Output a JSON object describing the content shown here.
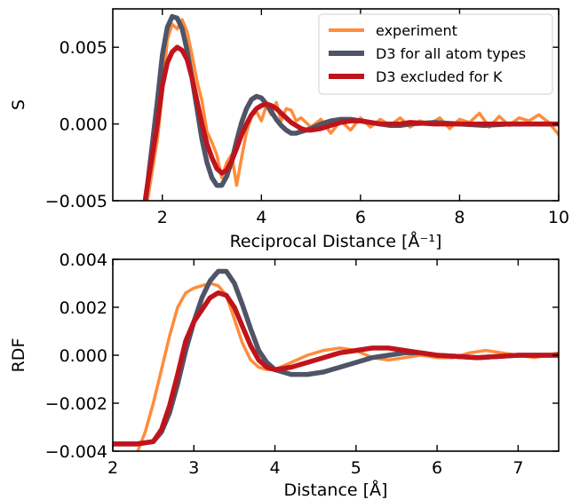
{
  "colors": {
    "experiment": "#ff8c3a",
    "d3_all": "#4f5467",
    "d3_excl": "#c0141c"
  },
  "chart_data": [
    {
      "type": "line",
      "ylabel": "S",
      "xlabel": "Reciprocal Distance [Å⁻¹]",
      "xlim": [
        1,
        10
      ],
      "ylim": [
        -0.005,
        0.0075
      ],
      "xticks": [
        2,
        4,
        6,
        8,
        10
      ],
      "xtick_labels": [
        "2",
        "4",
        "6",
        "8",
        "10"
      ],
      "yticks": [
        -0.005,
        0.0,
        0.005
      ],
      "ytick_labels": [
        "−0.005",
        "0.000",
        "0.005"
      ],
      "grid": false,
      "legend_position": "top-right",
      "series": [
        {
          "name": "experiment",
          "color_key": "experiment",
          "x": [
            1.5,
            1.7,
            1.9,
            2.0,
            2.1,
            2.2,
            2.3,
            2.4,
            2.5,
            2.6,
            2.7,
            2.8,
            2.9,
            3.0,
            3.1,
            3.2,
            3.3,
            3.4,
            3.5,
            3.6,
            3.7,
            3.8,
            3.9,
            4.0,
            4.1,
            4.2,
            4.3,
            4.4,
            4.5,
            4.6,
            4.7,
            4.8,
            4.9,
            5.0,
            5.2,
            5.4,
            5.6,
            5.8,
            6.0,
            6.2,
            6.4,
            6.6,
            6.8,
            7.0,
            7.2,
            7.4,
            7.6,
            7.8,
            8.0,
            8.2,
            8.4,
            8.6,
            8.8,
            9.0,
            9.2,
            9.4,
            9.6,
            9.8,
            10.0
          ],
          "y": [
            -0.007,
            -0.005,
            -0.001,
            0.002,
            0.0055,
            0.0065,
            0.0062,
            0.0068,
            0.006,
            0.0045,
            0.0028,
            0.0015,
            -0.0005,
            -0.0012,
            -0.002,
            -0.0035,
            -0.0025,
            -0.002,
            -0.004,
            -0.0022,
            -0.0005,
            0.0005,
            0.0008,
            0.0002,
            0.0012,
            0.0006,
            0.0014,
            0.0002,
            0.001,
            0.0009,
            0.0002,
            0.0004,
            0.0001,
            -0.0002,
            0.0003,
            -0.0006,
            0.0002,
            -0.0004,
            0.0004,
            -0.0002,
            0.0003,
            -0.0001,
            0.0004,
            -0.0002,
            0.0002,
            0.0,
            0.0004,
            -0.0003,
            0.0003,
            0.0001,
            0.0007,
            -0.0002,
            0.0005,
            -0.0001,
            0.0004,
            0.0002,
            0.0006,
            0.0001,
            -0.0007
          ]
        },
        {
          "name": "D3 for all atom types",
          "color_key": "d3_all",
          "x": [
            1.5,
            1.7,
            1.9,
            2.0,
            2.1,
            2.2,
            2.3,
            2.4,
            2.5,
            2.6,
            2.7,
            2.8,
            2.9,
            3.0,
            3.1,
            3.2,
            3.3,
            3.4,
            3.5,
            3.6,
            3.7,
            3.8,
            3.9,
            4.0,
            4.1,
            4.2,
            4.3,
            4.4,
            4.5,
            4.6,
            4.7,
            4.8,
            4.9,
            5.0,
            5.2,
            5.4,
            5.6,
            5.8,
            6.0,
            6.2,
            6.4,
            6.6,
            6.8,
            7.0,
            7.5,
            8.0,
            8.5,
            9.0,
            9.5,
            10.0
          ],
          "y": [
            -0.0085,
            -0.004,
            0.0015,
            0.0045,
            0.0063,
            0.007,
            0.0069,
            0.0062,
            0.0048,
            0.003,
            0.001,
            -0.001,
            -0.0025,
            -0.0035,
            -0.004,
            -0.004,
            -0.0034,
            -0.0024,
            -0.0011,
            0.0001,
            0.001,
            0.0016,
            0.0018,
            0.0017,
            0.0013,
            0.0008,
            0.0003,
            -0.0001,
            -0.0004,
            -0.0006,
            -0.0006,
            -0.0005,
            -0.0004,
            -0.0003,
            0.0,
            0.0002,
            0.0003,
            0.0003,
            0.0002,
            0.0001,
            0.0,
            -0.0001,
            -0.0001,
            0.0,
            0.0001,
            0.0,
            -0.0001,
            0.0,
            0.0,
            0.0
          ]
        },
        {
          "name": "D3 excluded for K",
          "color_key": "d3_excl",
          "x": [
            1.5,
            1.7,
            1.9,
            2.0,
            2.1,
            2.2,
            2.3,
            2.4,
            2.5,
            2.6,
            2.7,
            2.8,
            2.9,
            3.0,
            3.1,
            3.2,
            3.3,
            3.4,
            3.5,
            3.6,
            3.7,
            3.8,
            3.9,
            4.0,
            4.1,
            4.2,
            4.3,
            4.4,
            4.5,
            4.6,
            4.7,
            4.8,
            4.9,
            5.0,
            5.2,
            5.4,
            5.6,
            5.8,
            6.0,
            6.2,
            6.4,
            6.6,
            6.8,
            7.0,
            7.5,
            8.0,
            8.5,
            9.0,
            9.5,
            10.0
          ],
          "y": [
            -0.0085,
            -0.004,
            0.0,
            0.0025,
            0.004,
            0.0047,
            0.005,
            0.0048,
            0.0042,
            0.003,
            0.0015,
            0.0,
            -0.0013,
            -0.0022,
            -0.0029,
            -0.0032,
            -0.003,
            -0.0024,
            -0.0016,
            -0.0007,
            0.0,
            0.0006,
            0.001,
            0.0012,
            0.0013,
            0.0012,
            0.001,
            0.0007,
            0.0004,
            0.0001,
            -0.0001,
            -0.0003,
            -0.0004,
            -0.0004,
            -0.0003,
            -0.0001,
            0.0001,
            0.0002,
            0.0002,
            0.0001,
            0.0,
            0.0,
            0.0,
            0.0001,
            0.0,
            0.0,
            0.0,
            0.0,
            0.0,
            0.0
          ]
        }
      ]
    },
    {
      "type": "line",
      "ylabel": "RDF",
      "xlabel": "Distance [Å]",
      "xlim": [
        2,
        7.5
      ],
      "ylim": [
        -0.004,
        0.004
      ],
      "xticks": [
        2,
        3,
        4,
        5,
        6,
        7
      ],
      "xtick_labels": [
        "2",
        "3",
        "4",
        "5",
        "6",
        "7"
      ],
      "yticks": [
        -0.004,
        -0.002,
        0.0,
        0.002,
        0.004
      ],
      "ytick_labels": [
        "−0.004",
        "−0.002",
        "0.000",
        "0.002",
        "0.004"
      ],
      "grid": false,
      "series": [
        {
          "name": "experiment",
          "color_key": "experiment",
          "x": [
            2.25,
            2.4,
            2.5,
            2.6,
            2.7,
            2.8,
            2.9,
            3.0,
            3.1,
            3.2,
            3.3,
            3.4,
            3.5,
            3.6,
            3.7,
            3.8,
            3.9,
            4.0,
            4.2,
            4.4,
            4.6,
            4.8,
            5.0,
            5.2,
            5.4,
            5.6,
            5.8,
            6.0,
            6.2,
            6.4,
            6.6,
            6.8,
            7.0,
            7.2,
            7.5
          ],
          "y": [
            -0.0045,
            -0.0032,
            -0.002,
            -0.0006,
            0.0008,
            0.002,
            0.0026,
            0.0028,
            0.0029,
            0.003,
            0.0029,
            0.0025,
            0.0015,
            0.0005,
            -0.0002,
            -0.0005,
            -0.0006,
            -0.0006,
            -0.0003,
            0.0,
            0.0002,
            0.0003,
            0.0002,
            -0.0001,
            -0.0002,
            -0.0001,
            0.0,
            -0.0001,
            -0.0001,
            0.0001,
            0.0002,
            0.0001,
            0.0,
            -0.0001,
            0.0001
          ]
        },
        {
          "name": "D3 for all atom types",
          "color_key": "d3_all",
          "x": [
            2.0,
            2.3,
            2.5,
            2.6,
            2.7,
            2.8,
            2.9,
            3.0,
            3.1,
            3.2,
            3.3,
            3.4,
            3.5,
            3.6,
            3.7,
            3.8,
            3.9,
            4.0,
            4.2,
            4.4,
            4.6,
            4.8,
            5.0,
            5.2,
            5.4,
            5.6,
            5.8,
            6.0,
            6.5,
            7.0,
            7.5
          ],
          "y": [
            -0.0037,
            -0.0037,
            -0.0036,
            -0.0032,
            -0.0024,
            -0.0012,
            0.0002,
            0.0014,
            0.0024,
            0.0031,
            0.0035,
            0.0035,
            0.003,
            0.0021,
            0.0011,
            0.0002,
            -0.0003,
            -0.0006,
            -0.0008,
            -0.0008,
            -0.0007,
            -0.0005,
            -0.0003,
            -0.0001,
            0.0,
            0.0001,
            0.0001,
            0.0,
            -0.0001,
            0.0,
            0.0
          ]
        },
        {
          "name": "D3 excluded for K",
          "color_key": "d3_excl",
          "x": [
            2.0,
            2.3,
            2.5,
            2.6,
            2.7,
            2.8,
            2.9,
            3.0,
            3.1,
            3.2,
            3.3,
            3.4,
            3.5,
            3.6,
            3.7,
            3.8,
            3.9,
            4.0,
            4.2,
            4.4,
            4.6,
            4.8,
            5.0,
            5.2,
            5.4,
            5.6,
            5.8,
            6.0,
            6.5,
            7.0,
            7.5
          ],
          "y": [
            -0.0037,
            -0.0037,
            -0.0036,
            -0.0031,
            -0.0021,
            -0.0008,
            0.0006,
            0.0014,
            0.0019,
            0.0024,
            0.0026,
            0.0025,
            0.002,
            0.0012,
            0.0004,
            -0.0002,
            -0.0005,
            -0.0006,
            -0.0005,
            -0.0003,
            -0.0001,
            0.0001,
            0.0002,
            0.0003,
            0.0003,
            0.0002,
            0.0001,
            0.0,
            -0.0001,
            0.0,
            0.0
          ]
        }
      ]
    }
  ]
}
